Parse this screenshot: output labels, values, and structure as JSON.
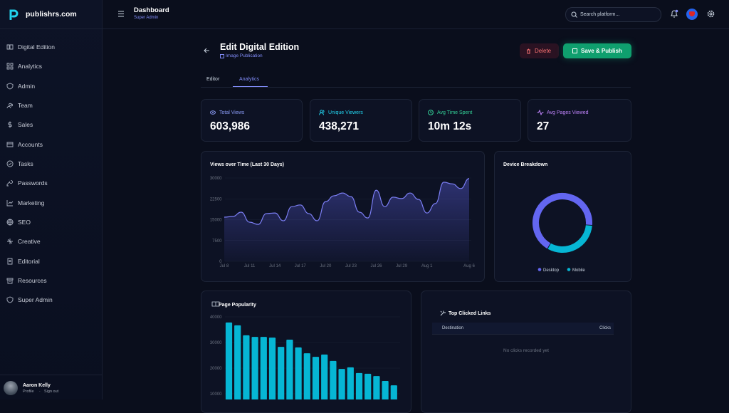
{
  "brand": "publishrs.com",
  "sidebar": {
    "items": [
      "Digital Edition",
      "Analytics",
      "Admin",
      "Team",
      "Sales",
      "Accounts",
      "Tasks",
      "Passwords",
      "Marketing",
      "SEO",
      "Creative",
      "Editorial",
      "Resources",
      "Super Admin"
    ],
    "user": {
      "name": "Aaron Kelly",
      "profile": "Profile",
      "separator": "·",
      "sign_out": "Sign out"
    }
  },
  "topbar": {
    "title": "Dashboard",
    "subtitle": "Super Admin",
    "search_placeholder": "Search platform..."
  },
  "page": {
    "title": "Edit Digital Edition",
    "subtitle": "Image Publication",
    "delete": "Delete",
    "save": "Save & Publish",
    "tabs": [
      "Editor",
      "Analytics"
    ]
  },
  "stats": [
    {
      "label": "Total Views",
      "value": "603,986"
    },
    {
      "label": "Unique Viewers",
      "value": "438,271"
    },
    {
      "label": "Avg Time Spent",
      "value": "10m 12s"
    },
    {
      "label": "Avg Pages Viewed",
      "value": "27"
    }
  ],
  "chart_data": [
    {
      "type": "line",
      "title": "Views over Time (Last 30 Days)",
      "categories": [
        "Jul 8",
        null,
        null,
        "Jul 11",
        null,
        null,
        "Jul 14",
        null,
        null,
        "Jul 17",
        null,
        null,
        "Jul 20",
        null,
        null,
        "Jul 23",
        null,
        null,
        "Jul 26",
        null,
        null,
        "Jul 29",
        null,
        null,
        "Aug 1",
        null,
        null,
        null,
        null,
        "Aug 6"
      ],
      "values": [
        15900,
        16150,
        17700,
        14100,
        13300,
        17200,
        17400,
        14600,
        19700,
        20300,
        17200,
        14600,
        21500,
        23600,
        24600,
        23300,
        17700,
        15600,
        25600,
        19700,
        23100,
        22600,
        24600,
        22300,
        17400,
        20800,
        28500,
        27900,
        26200,
        29800
      ],
      "color": "#7c7ff5",
      "fill": true,
      "ylim": [
        0,
        30000
      ],
      "yticks": [
        0,
        7500,
        15000,
        22500,
        30000
      ],
      "grid": true
    },
    {
      "type": "doughnut",
      "title": "Device Breakdown",
      "categories": [
        "Desktop",
        "Mobile"
      ],
      "values": [
        68,
        32
      ],
      "colors": [
        "#6366f1",
        "#06b6d4"
      ],
      "legend": "bottom"
    },
    {
      "type": "bar",
      "title": "Page Popularity",
      "values": [
        37800,
        36700,
        32800,
        32200,
        32200,
        31900,
        28300,
        31100,
        28100,
        25800,
        24400,
        25300,
        22800,
        19700,
        20300,
        18100,
        17800,
        16900,
        15000,
        13300
      ],
      "color": "#06b6d4",
      "ylim": [
        0,
        40000
      ],
      "yticks": [
        10000,
        20000,
        30000,
        40000
      ],
      "grid": true
    }
  ],
  "links": {
    "title": "Top Clicked Links",
    "columns": [
      "Destination",
      "Clicks"
    ],
    "empty": "No clicks recorded yet"
  }
}
